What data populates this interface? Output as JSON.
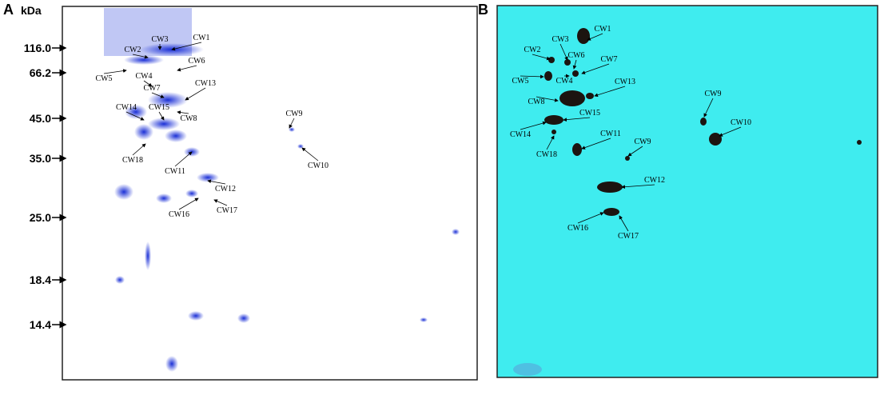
{
  "panels": [
    {
      "label": "A",
      "unit": "kDa",
      "markers": [
        "116.0",
        "66.2",
        "45.0",
        "35.0",
        "25.0",
        "18.4",
        "14.4"
      ],
      "spots": [
        "CW1",
        "CW3",
        "CW2",
        "CW6",
        "CW5",
        "CW4",
        "CW7",
        "CW13",
        "CW14",
        "CW15",
        "CW8",
        "CW9",
        "CW18",
        "CW11",
        "CW10",
        "CW12",
        "CW16",
        "CW17"
      ]
    },
    {
      "label": "B",
      "spots": [
        "CW1",
        "CW3",
        "CW2",
        "CW6",
        "CW7",
        "CW5",
        "CW4",
        "CW13",
        "CW8",
        "CW15",
        "CW14",
        "CW11",
        "CW18",
        "CW9",
        "CW9",
        "CW10",
        "CW12",
        "CW16",
        "CW17"
      ]
    }
  ]
}
